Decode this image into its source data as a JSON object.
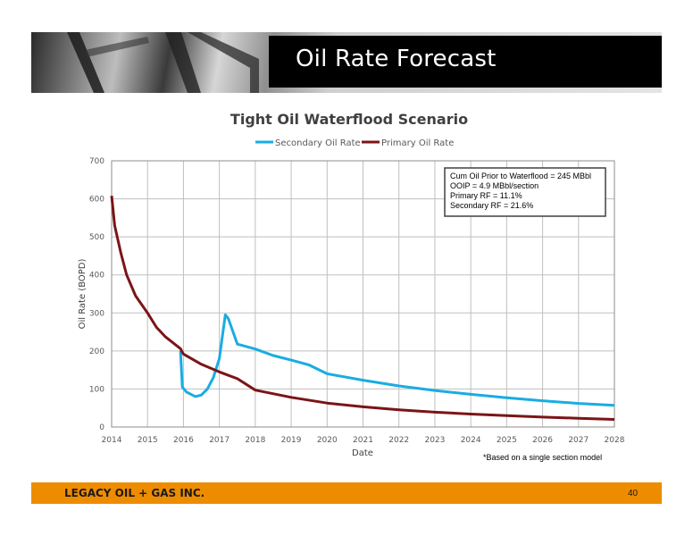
{
  "slide": {
    "title": "Oil Rate Forecast",
    "company": "LEGACY OIL + GAS INC.",
    "page_number": "40"
  },
  "colors": {
    "secondary": "#1aace2",
    "primary": "#7b1416",
    "footer": "#ee8c00",
    "grid": "#bfbfbf"
  },
  "chart_data": {
    "type": "line",
    "title": "Tight Oil Waterflood Scenario",
    "xlabel": "Date",
    "ylabel": "Oil Rate (BOPD)",
    "xlim": [
      "2014",
      "2028"
    ],
    "ylim": [
      0,
      700
    ],
    "xticks": [
      "2014",
      "2015",
      "2016",
      "2017",
      "2018",
      "2019",
      "2020",
      "2021",
      "2022",
      "2023",
      "2024",
      "2025",
      "2026",
      "2027",
      "2028"
    ],
    "yticks": [
      0,
      100,
      200,
      300,
      400,
      500,
      600,
      700
    ],
    "grid": true,
    "legend_position": "top",
    "series": [
      {
        "name": "Secondary Oil Rate",
        "color": "#1aace2",
        "points": [
          [
            "2015-12",
            200
          ],
          [
            "2015-12-20",
            105
          ],
          [
            "2016-02",
            92
          ],
          [
            "2016-05",
            80
          ],
          [
            "2016-07",
            84
          ],
          [
            "2016-09",
            100
          ],
          [
            "2016-11",
            130
          ],
          [
            "2017-01",
            180
          ],
          [
            "2017-03",
            295
          ],
          [
            "2017-04",
            285
          ],
          [
            "2017-07",
            218
          ],
          [
            "2018",
            205
          ],
          [
            "2018-07",
            188
          ],
          [
            "2019",
            176
          ],
          [
            "2019-07",
            163
          ],
          [
            "2020",
            140
          ],
          [
            "2021",
            123
          ],
          [
            "2022",
            108
          ],
          [
            "2023",
            96
          ],
          [
            "2024",
            86
          ],
          [
            "2025",
            77
          ],
          [
            "2026",
            69
          ],
          [
            "2027",
            62
          ],
          [
            "2028",
            57
          ]
        ]
      },
      {
        "name": "Primary Oil Rate",
        "color": "#7b1416",
        "points": [
          [
            "2014",
            608
          ],
          [
            "2014-02",
            530
          ],
          [
            "2014-04",
            460
          ],
          [
            "2014-06",
            400
          ],
          [
            "2014-09",
            345
          ],
          [
            "2015",
            300
          ],
          [
            "2015-04",
            262
          ],
          [
            "2015-07",
            237
          ],
          [
            "2015-12",
            206
          ],
          [
            "2016",
            192
          ],
          [
            "2016-07",
            165
          ],
          [
            "2017",
            145
          ],
          [
            "2017-07",
            127
          ],
          [
            "2018",
            97
          ],
          [
            "2019",
            78
          ],
          [
            "2020",
            63
          ],
          [
            "2021",
            53
          ],
          [
            "2022",
            45
          ],
          [
            "2023",
            39
          ],
          [
            "2024",
            34
          ],
          [
            "2025",
            30
          ],
          [
            "2026",
            26
          ],
          [
            "2027",
            23
          ],
          [
            "2028",
            20
          ]
        ]
      }
    ],
    "annotations": [
      "Cum Oil Prior to Waterflood = 245 MBbl",
      "OOIP = 4.9 MBbl/section",
      "Primary RF = 11.1%",
      "Secondary RF = 21.6%"
    ],
    "footnote": "*Based on a single section model"
  }
}
